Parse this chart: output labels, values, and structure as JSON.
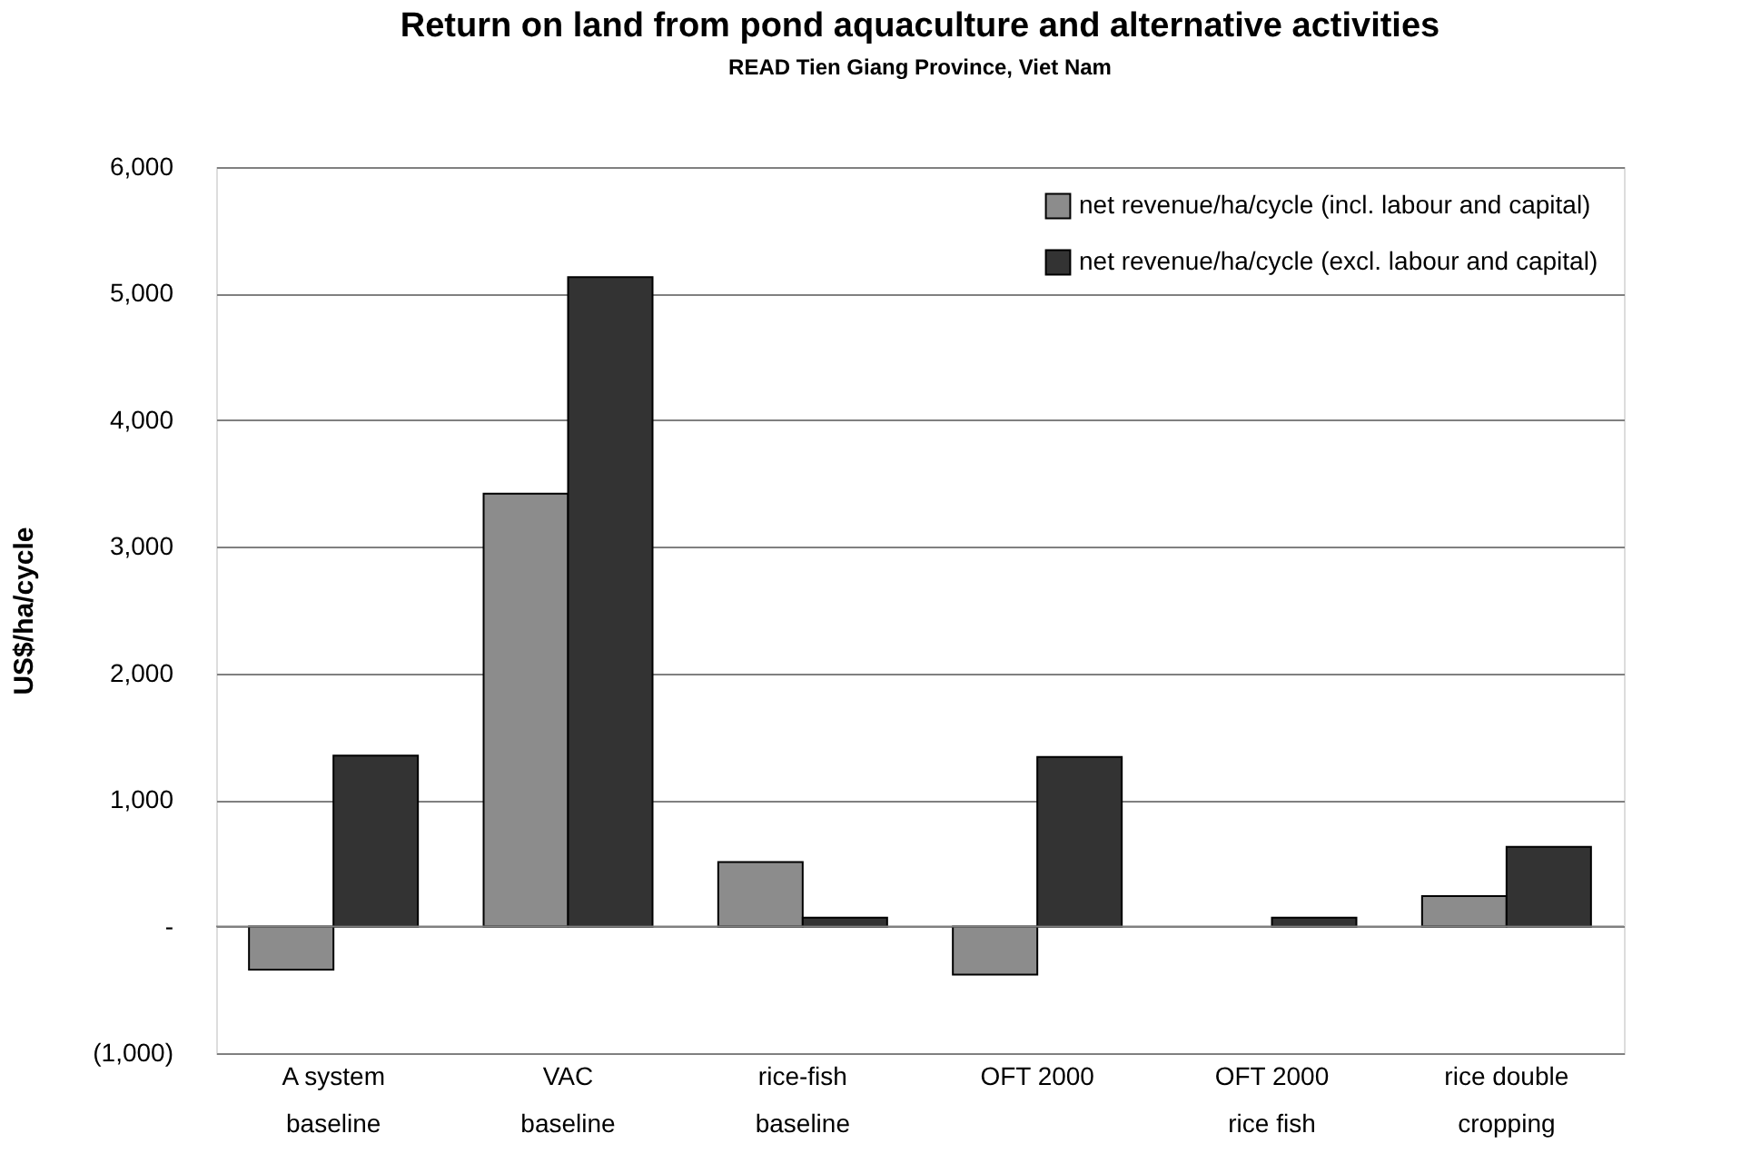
{
  "chart_data": {
    "type": "bar",
    "title": "Return on land from pond aquaculture and alternative activities",
    "subtitle": "READ Tien Giang Province, Viet Nam",
    "ylabel": "US$/ha/cycle",
    "categories": [
      "A system baseline",
      "VAC baseline",
      "rice-fish baseline",
      "OFT 2000",
      "OFT 2000 rice fish",
      "rice double cropping"
    ],
    "series": [
      {
        "name": "net revenue/ha/cycle (incl. labour and capital)",
        "color": "#8c8c8c",
        "values": [
          -340,
          3420,
          510,
          -380,
          null,
          240
        ]
      },
      {
        "name": "net revenue/ha/cycle (excl. labour and capital)",
        "color": "#333333",
        "values": [
          1350,
          5130,
          70,
          1340,
          70,
          630
        ]
      }
    ],
    "ylim": [
      -1000,
      6000
    ],
    "yticks": [
      {
        "value": -1000,
        "label": "(1,000)"
      },
      {
        "value": 0,
        "label": "-"
      },
      {
        "value": 1000,
        "label": "1,000"
      },
      {
        "value": 2000,
        "label": "2,000"
      },
      {
        "value": 3000,
        "label": "3,000"
      },
      {
        "value": 4000,
        "label": "4,000"
      },
      {
        "value": 5000,
        "label": "5,000"
      },
      {
        "value": 6000,
        "label": "6,000"
      }
    ],
    "grid": "y",
    "legend": "top right"
  }
}
